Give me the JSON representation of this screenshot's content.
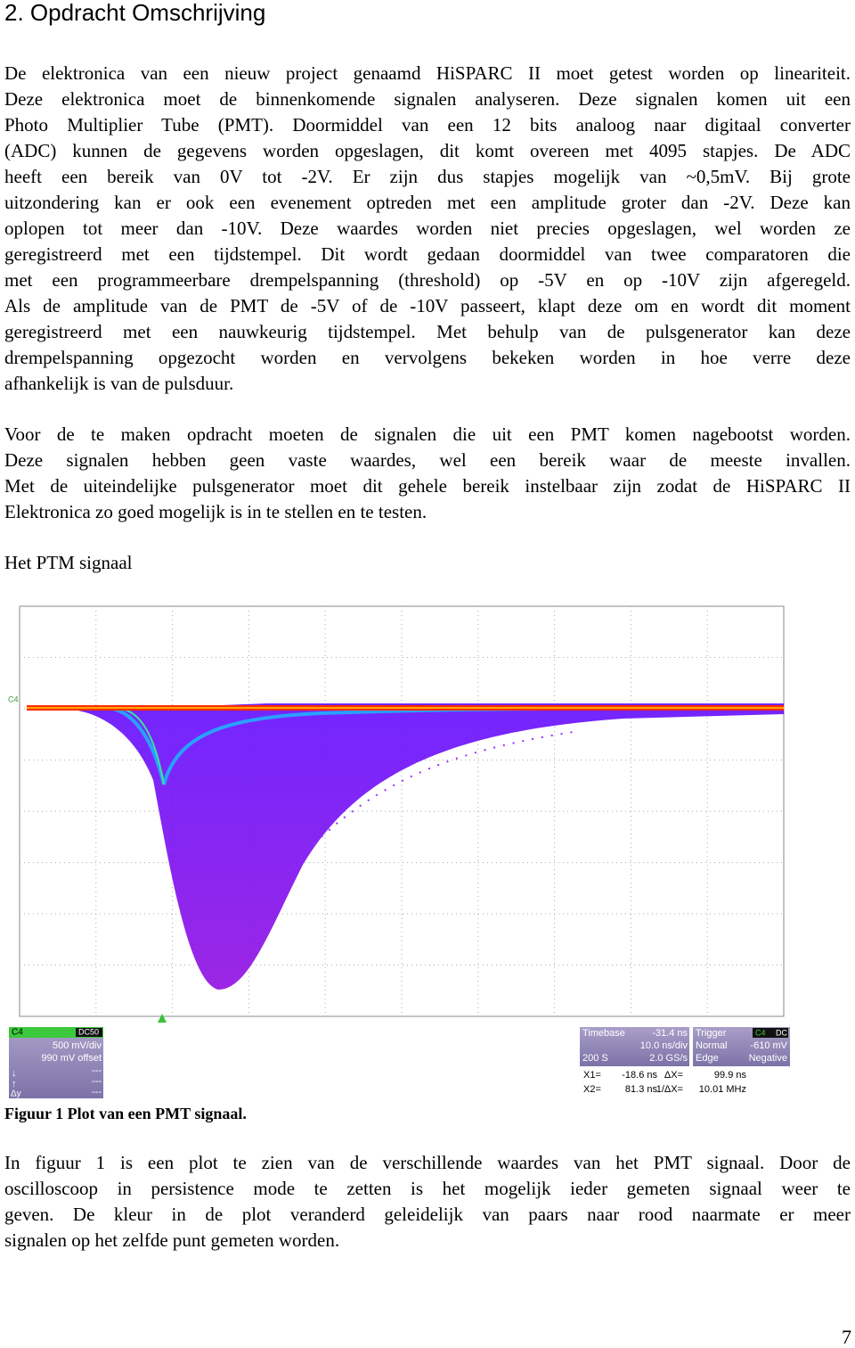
{
  "heading": "2. Opdracht Omschrijving",
  "paragraphs": [
    [
      "De elektronica van een nieuw project genaamd HiSPARC II moet getest worden op lineariteit.",
      "Deze elektronica moet de binnenkomende signalen analyseren. Deze signalen komen uit een",
      "Photo Multiplier Tube (PMT). Doormiddel van een 12 bits analoog naar digitaal converter",
      "(ADC) kunnen de gegevens worden opgeslagen, dit komt overeen met 4095 stapjes. De ADC",
      "heeft een bereik van 0V tot -2V. Er zijn dus stapjes mogelijk van ~0,5mV. Bij grote",
      "uitzondering kan er ook een evenement optreden met een amplitude groter dan -2V. Deze kan",
      "oplopen tot meer dan -10V. Deze waardes worden niet precies opgeslagen, wel worden ze",
      "geregistreerd met een tijdstempel. Dit wordt gedaan doormiddel van twee comparatoren die",
      "met een programmeerbare drempelspanning (threshold) op -5V en op -10V zijn afgeregeld.",
      "Als de amplitude van de PMT de -5V of de -10V passeert, klapt deze om en wordt dit moment",
      "geregistreerd met een nauwkeurig tijdstempel. Met behulp van de pulsgenerator kan deze",
      "drempelspanning opgezocht worden en vervolgens bekeken worden in hoe verre deze",
      "afhankelijk is van de pulsduur."
    ],
    [
      "Voor de te maken opdracht moeten de signalen die uit een PMT komen nagebootst worden.",
      "Deze signalen hebben geen vaste waardes, wel een bereik waar de meeste invallen.",
      "Met de uiteindelijke pulsgenerator moet dit gehele bereik instelbaar zijn zodat de HiSPARC II",
      "Elektronica zo goed mogelijk is in te stellen en te testen."
    ],
    [
      "In figuur 1 is een plot te zien van de verschillende waardes van het PMT signaal. Door de",
      "oscilloscoop in persistence mode te zetten is het mogelijk ieder gemeten signaal weer te",
      "geven. De kleur in de plot veranderd geleidelijk van paars naar rood naarmate er meer",
      "signalen op het zelfde punt gemeten worden."
    ]
  ],
  "subheading": "Het PTM signaal",
  "figure": {
    "trace_label": "C4",
    "channel": {
      "name": "C4",
      "coupling": "DC50",
      "scale": "500 mV/div",
      "offset": "990 mV offset",
      "symbols": [
        "↓",
        "↑",
        "Δy"
      ],
      "readouts": [
        "---",
        "---",
        "---",
        "---"
      ]
    },
    "timebase": {
      "label": "Timebase",
      "delay": "-31.4 ns",
      "scale": "10.0 ns/div",
      "samples": "200 S",
      "rate": "2.0 GS/s"
    },
    "trigger": {
      "label": "Trigger",
      "source": "C4",
      "coupling": "DC",
      "mode": "Normal",
      "level": "-610 mV",
      "type": "Edge",
      "slope": "Negative"
    },
    "cursors": [
      [
        "X1=",
        "-18.6 ns",
        "ΔX=",
        "99.9 ns"
      ],
      [
        "X2=",
        "81.3 ns",
        "1/ΔX=",
        "10.01 MHz"
      ]
    ],
    "caption": "Figuur 1 Plot van een PMT signaal."
  },
  "page_number": "7"
}
